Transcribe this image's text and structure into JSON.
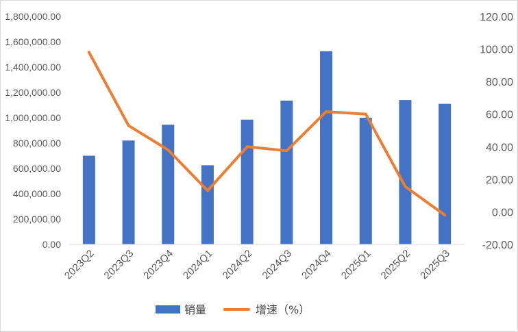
{
  "chart_data": {
    "type": "bar",
    "categories": [
      "2023Q2",
      "2023Q3",
      "2023Q4",
      "2024Q1",
      "2024Q2",
      "2024Q3",
      "2024Q4",
      "2025Q1",
      "2025Q2",
      "2025Q3"
    ],
    "series": [
      {
        "name": "销量",
        "type": "bar",
        "axis": "left",
        "values": [
          700000,
          820000,
          945000,
          625000,
          985000,
          1135000,
          1525000,
          1000000,
          1140000,
          1110000
        ]
      },
      {
        "name": "增速（%）",
        "type": "line",
        "axis": "right",
        "values": [
          98,
          53,
          38,
          13,
          40,
          37.5,
          61.5,
          60,
          15.5,
          -2
        ]
      }
    ],
    "y_left": {
      "lim": [
        0,
        1800000
      ],
      "ticks": [
        0,
        200000,
        400000,
        600000,
        800000,
        1000000,
        1200000,
        1400000,
        1600000,
        1800000
      ],
      "tick_labels": [
        "0.00",
        "200,000.00",
        "400,000.00",
        "600,000.00",
        "800,000.00",
        "1,000,000.00",
        "1,200,000.00",
        "1,400,000.00",
        "1,600,000.00",
        "1,800,000.00"
      ]
    },
    "y_right": {
      "lim": [
        -20,
        120
      ],
      "ticks": [
        -20,
        0,
        20,
        40,
        60,
        80,
        100,
        120
      ],
      "tick_labels": [
        "-20.00",
        "0.00",
        "20.00",
        "40.00",
        "60.00",
        "80.00",
        "100.00",
        "120.00"
      ]
    },
    "legend": "bottom-center",
    "grid": false,
    "colors": {
      "bar": "#4472C4",
      "line": "#ED7D31",
      "axis_text": "#595959"
    }
  }
}
